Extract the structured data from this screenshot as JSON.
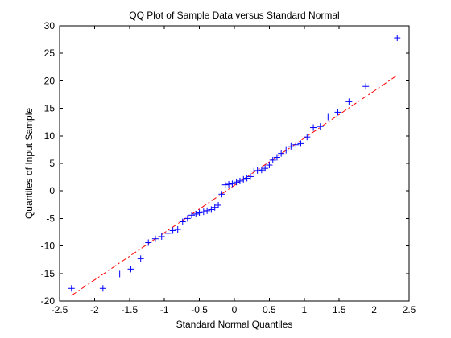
{
  "chart_data": {
    "type": "scatter",
    "title": "QQ Plot of Sample Data versus Standard Normal",
    "xlabel": "Standard Normal Quantiles",
    "ylabel": "Quantiles of Input Sample",
    "xlim": [
      -2.5,
      2.5
    ],
    "ylim": [
      -20,
      30
    ],
    "xticks": [
      "-2.5",
      "-2",
      "-1.5",
      "-1",
      "-0.5",
      "0",
      "0.5",
      "1",
      "1.5",
      "2",
      "2.5"
    ],
    "yticks": [
      "-20",
      "-15",
      "-10",
      "-5",
      "0",
      "5",
      "10",
      "15",
      "20",
      "25",
      "30"
    ],
    "grid": false,
    "legend": "none",
    "marker": "+",
    "colors": {
      "points": "#0000ff",
      "reference_line": "#ff0000",
      "axes": "#000000"
    },
    "reference_line": {
      "style": "dash-dot",
      "x": [
        -2.33,
        2.33
      ],
      "y": [
        -19.0,
        21.0
      ]
    },
    "series": [
      {
        "points": [
          [
            -2.33,
            -17.7
          ],
          [
            -1.88,
            -17.7
          ],
          [
            -1.64,
            -15.1
          ],
          [
            -1.48,
            -14.2
          ],
          [
            -1.34,
            -12.3
          ],
          [
            -1.23,
            -9.4
          ],
          [
            -1.13,
            -8.7
          ],
          [
            -1.04,
            -8.3
          ],
          [
            -0.95,
            -7.7
          ],
          [
            -0.88,
            -7.2
          ],
          [
            -0.81,
            -7.0
          ],
          [
            -0.74,
            -5.6
          ],
          [
            -0.67,
            -5.0
          ],
          [
            -0.61,
            -4.4
          ],
          [
            -0.55,
            -4.2
          ],
          [
            -0.5,
            -4.0
          ],
          [
            -0.44,
            -3.8
          ],
          [
            -0.39,
            -3.6
          ],
          [
            -0.33,
            -3.4
          ],
          [
            -0.28,
            -3.0
          ],
          [
            -0.23,
            -2.6
          ],
          [
            -0.18,
            -0.6
          ],
          [
            -0.13,
            1.1
          ],
          [
            -0.08,
            1.2
          ],
          [
            -0.03,
            1.3
          ],
          [
            0.03,
            1.6
          ],
          [
            0.08,
            1.8
          ],
          [
            0.13,
            2.1
          ],
          [
            0.18,
            2.3
          ],
          [
            0.23,
            2.6
          ],
          [
            0.28,
            3.6
          ],
          [
            0.33,
            3.7
          ],
          [
            0.39,
            3.8
          ],
          [
            0.44,
            4.1
          ],
          [
            0.5,
            4.7
          ],
          [
            0.55,
            5.6
          ],
          [
            0.61,
            6.1
          ],
          [
            0.67,
            6.8
          ],
          [
            0.74,
            7.4
          ],
          [
            0.81,
            8.1
          ],
          [
            0.88,
            8.4
          ],
          [
            0.95,
            8.6
          ],
          [
            1.04,
            9.8
          ],
          [
            1.13,
            11.5
          ],
          [
            1.23,
            11.7
          ],
          [
            1.34,
            13.4
          ],
          [
            1.48,
            14.3
          ],
          [
            1.64,
            16.2
          ],
          [
            1.88,
            19.0
          ],
          [
            2.33,
            27.8
          ]
        ]
      }
    ]
  }
}
